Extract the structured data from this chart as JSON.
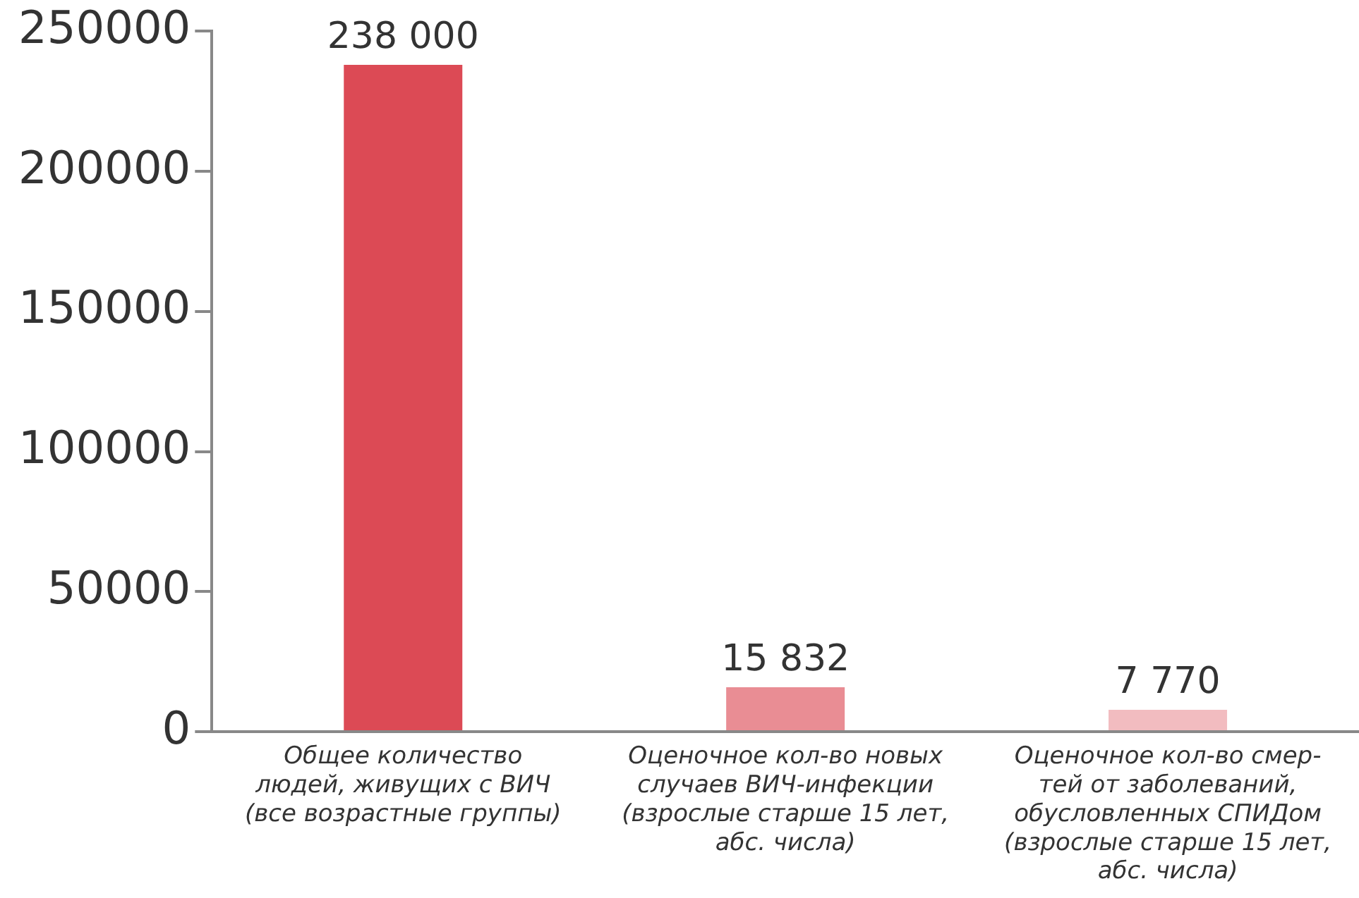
{
  "chart_data": {
    "type": "bar",
    "categories": [
      "Общее количество\nлюдей, живущих с ВИЧ\n(все возрастные группы)",
      "Оценочное кол-во новых\nслучаев ВИЧ-инфекции\n(взрослые старше 15 лет,\nабс. числа)",
      "Оценочное кол-во смер-\nтей от заболеваний,\nобусловленных СПИДом\n(взрослые старше 15 лет,\nабс. числа)"
    ],
    "values": [
      238000,
      15832,
      7770
    ],
    "colors": [
      "#dc4a55",
      "#e98d94",
      "#f2bcc0"
    ],
    "value_labels": [
      "238 000",
      "15 832",
      "7 770"
    ],
    "ylim": [
      0,
      250000
    ],
    "yticks": [
      0,
      50000,
      100000,
      150000,
      200000,
      250000
    ],
    "grid": false,
    "legend": false
  }
}
